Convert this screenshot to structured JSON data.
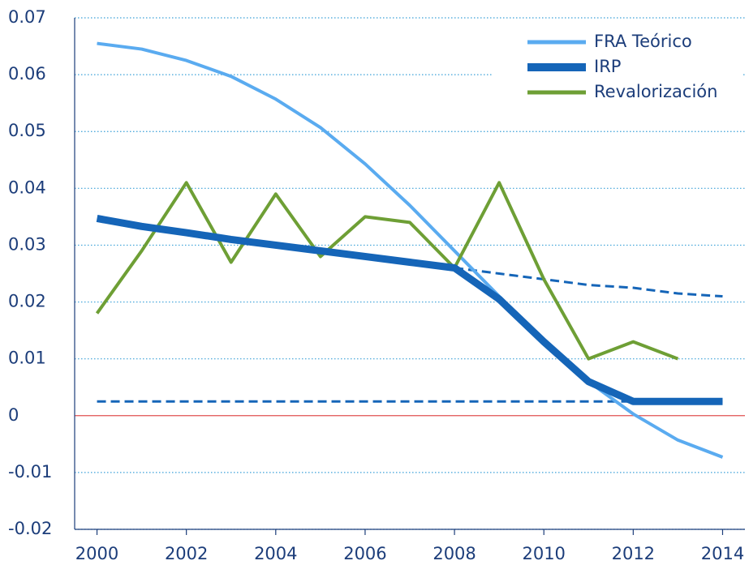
{
  "chart_data": {
    "type": "line",
    "x": [
      2000,
      2001,
      2002,
      2003,
      2004,
      2005,
      2006,
      2007,
      2008,
      2009,
      2010,
      2011,
      2012,
      2013,
      2014
    ],
    "series": [
      {
        "name": "FRA Teórico",
        "color": "#5aabf0",
        "values": [
          0.0655,
          0.0645,
          0.0625,
          0.0597,
          0.0557,
          0.0507,
          0.0443,
          0.037,
          0.029,
          0.021,
          0.013,
          0.006,
          0.0003,
          -0.0043,
          -0.0073
        ]
      },
      {
        "name": "IRP",
        "color": "#1565b8",
        "values": [
          0.0347,
          0.0333,
          0.0322,
          0.031,
          0.03,
          0.029,
          0.028,
          0.027,
          0.026,
          0.0205,
          0.013,
          0.006,
          0.0025,
          0.0025,
          0.0025
        ]
      },
      {
        "name": "Revalorización",
        "color": "#6e9f35",
        "values": [
          0.018,
          0.029,
          0.041,
          0.027,
          0.039,
          0.028,
          0.035,
          0.034,
          0.026,
          0.041,
          0.024,
          0.01,
          0.013,
          0.01,
          null
        ]
      },
      {
        "color": "#1565b8",
        "dashed": true,
        "values": [
          null,
          null,
          null,
          null,
          null,
          null,
          null,
          null,
          0.026,
          0.025,
          0.024,
          0.023,
          0.0225,
          0.0215,
          0.021
        ]
      },
      {
        "color": "#1565b8",
        "dashed": true,
        "values": [
          0.0025,
          0.0025,
          0.0025,
          0.0025,
          0.0025,
          0.0025,
          0.0025,
          0.0025,
          0.0025,
          0.0025,
          0.0025,
          0.0025,
          0.0025,
          0.0025,
          0.0025
        ]
      }
    ],
    "xlim": [
      1999.5,
      2014.5
    ],
    "xticks": [
      2000,
      2002,
      2004,
      2006,
      2008,
      2010,
      2012,
      2014
    ],
    "ylim": [
      -0.02,
      0.07
    ],
    "yticks": [
      -0.02,
      -0.01,
      0,
      0.01,
      0.02,
      0.03,
      0.04,
      0.05,
      0.06,
      0.07
    ],
    "grid": true,
    "legend": "upper right",
    "zero_line_color": "#e05050"
  }
}
